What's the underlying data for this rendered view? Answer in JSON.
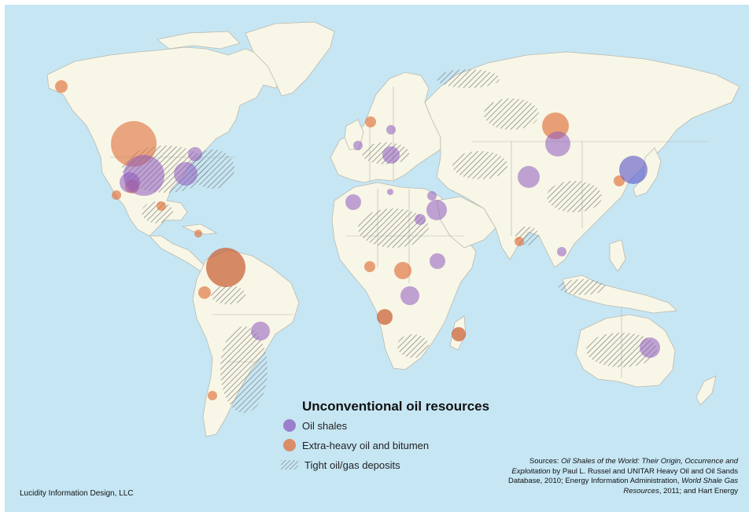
{
  "legend": {
    "title": "Unconventional oil resources",
    "items": [
      {
        "label": "Oil shales",
        "color": "#8e5bbf"
      },
      {
        "label": "Extra-heavy oil and bitumen",
        "color": "#e0703a"
      },
      {
        "label": "Tight oil/gas deposits",
        "icon": "diagonal-hatch-icon"
      }
    ]
  },
  "credit": "Lucidity Information Design, LLC",
  "sources": {
    "prefix": "Sources: ",
    "title1": "Oil Shales of the World: Their Origin, Occurrence and Exploitation",
    "part1": " by Paul L. Russel and UNITAR Heavy Oil and Oil Sands Database, 2010; Energy Information Administration, ",
    "title2": "World Shale Gas Resources",
    "part2": ", 2011; and Hart Energy"
  },
  "colors": {
    "ocean": "#c6e6f4",
    "land": "#f8f6e6",
    "oil_shale": "#8e5bbf",
    "heavy_oil": "#e0703a",
    "hatch": "#8c8c8c"
  }
}
